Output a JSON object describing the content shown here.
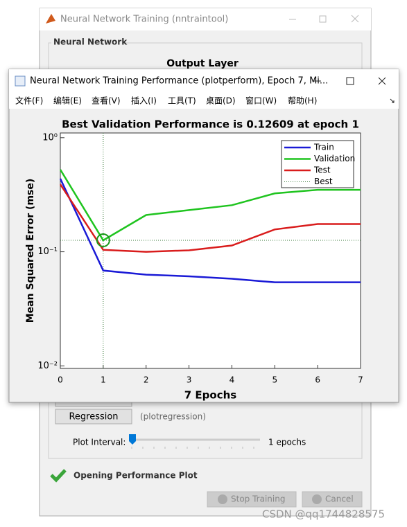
{
  "background_window": {
    "title": "Neural Network Training (nntraintool)",
    "group_title": "Neural Network",
    "section_title": "Output Layer",
    "plot_button": "Regression",
    "plot_button_hint": "(plotregression)",
    "plot_interval_label": "Plot Interval:",
    "plot_interval_value": "1 epochs",
    "status": "Opening Performance Plot",
    "buttons": [
      "Stop Training",
      "Cancel"
    ]
  },
  "figure_window": {
    "title": "Neural Network Training Performance (plotperform), Epoch 7, Mi...",
    "menu": [
      "文件(F)",
      "编辑(E)",
      "查看(V)",
      "插入(I)",
      "工具(T)",
      "桌面(D)",
      "窗口(W)",
      "帮助(H)"
    ]
  },
  "watermark": "CSDN @qq1744828575",
  "chart_data": {
    "type": "line",
    "title": "Best Validation Performance is 0.12609 at epoch 1",
    "x_label": "7 Epochs",
    "y_label": "Mean Squared Error  (mse)",
    "x": [
      0,
      1,
      2,
      3,
      4,
      5,
      6,
      7
    ],
    "series": [
      {
        "name": "Train",
        "color": "#1a1ad6",
        "values": [
          0.437,
          0.0685,
          0.063,
          0.061,
          0.058,
          0.054,
          0.054,
          0.054
        ]
      },
      {
        "name": "Validation",
        "color": "#1fc41f",
        "values": [
          0.525,
          0.12609,
          0.21,
          0.232,
          0.256,
          0.325,
          0.349,
          0.349
        ]
      },
      {
        "name": "Test",
        "color": "#d91c1c",
        "values": [
          0.39,
          0.104,
          0.1,
          0.103,
          0.1135,
          0.157,
          0.175,
          0.175
        ]
      }
    ],
    "best": {
      "name": "Best",
      "x": 1,
      "y": 0.12609,
      "color": "#3a7a3a"
    },
    "xlim": [
      0,
      7
    ],
    "xticks": [
      0,
      1,
      2,
      3,
      4,
      5,
      6,
      7
    ],
    "ylim": [
      0.0095,
      1.1
    ],
    "y_scale": "log",
    "yticks": [
      {
        "value": 1,
        "label": "10⁰"
      },
      {
        "value": 0.1,
        "label": "10⁻¹"
      },
      {
        "value": 0.01,
        "label": "10⁻²"
      }
    ],
    "legend": "upper right"
  }
}
